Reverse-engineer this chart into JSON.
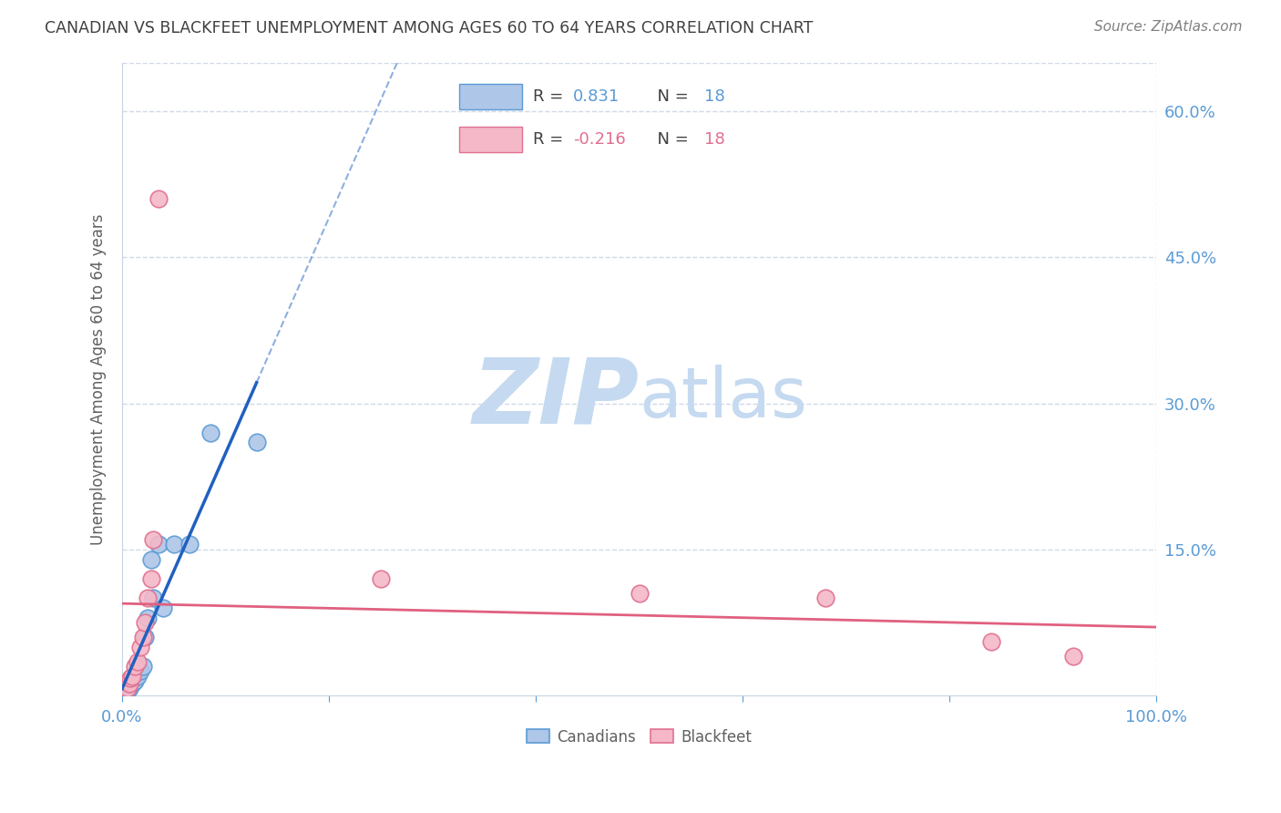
{
  "title": "CANADIAN VS BLACKFEET UNEMPLOYMENT AMONG AGES 60 TO 64 YEARS CORRELATION CHART",
  "source": "Source: ZipAtlas.com",
  "ylabel": "Unemployment Among Ages 60 to 64 years",
  "xlim": [
    0,
    1.0
  ],
  "ylim": [
    0,
    0.65
  ],
  "xticks": [
    0.0,
    0.2,
    0.4,
    0.6,
    0.8,
    1.0
  ],
  "xticklabels": [
    "0.0%",
    "",
    "",
    "",
    "",
    "100.0%"
  ],
  "yticks": [
    0.0,
    0.15,
    0.3,
    0.45,
    0.6
  ],
  "yticklabels": [
    "",
    "15.0%",
    "30.0%",
    "45.0%",
    "60.0%"
  ],
  "canadians_x": [
    0.005,
    0.007,
    0.008,
    0.01,
    0.012,
    0.015,
    0.018,
    0.02,
    0.022,
    0.025,
    0.028,
    0.03,
    0.035,
    0.04,
    0.05,
    0.065,
    0.085,
    0.13
  ],
  "canadians_y": [
    0.005,
    0.008,
    0.01,
    0.012,
    0.015,
    0.02,
    0.025,
    0.03,
    0.06,
    0.08,
    0.14,
    0.1,
    0.155,
    0.09,
    0.155,
    0.155,
    0.27,
    0.26
  ],
  "blackfeet_x": [
    0.005,
    0.007,
    0.008,
    0.01,
    0.012,
    0.015,
    0.018,
    0.02,
    0.022,
    0.025,
    0.028,
    0.03,
    0.035,
    0.25,
    0.5,
    0.68,
    0.84,
    0.92
  ],
  "blackfeet_y": [
    0.008,
    0.012,
    0.018,
    0.02,
    0.03,
    0.035,
    0.05,
    0.06,
    0.075,
    0.1,
    0.12,
    0.16,
    0.51,
    0.12,
    0.105,
    0.1,
    0.055,
    0.04
  ],
  "canadians_color": "#aec6e8",
  "canadians_edge_color": "#5b9bd5",
  "blackfeet_color": "#f4b8c8",
  "blackfeet_edge_color": "#e07090",
  "canadians_line_color": "#2060c0",
  "blackfeet_line_color": "#e06080",
  "r_canadians": "0.831",
  "n_canadians": "18",
  "r_blackfeet": "-0.216",
  "n_blackfeet": "18",
  "legend_canadians": "Canadians",
  "legend_blackfeet": "Blackfeet",
  "watermark_zip": "ZIP",
  "watermark_atlas": "atlas",
  "watermark_color_zip": "#c5daf0",
  "watermark_color_atlas": "#c5daf0",
  "background_color": "#ffffff",
  "title_color": "#404040",
  "axis_label_color": "#606060",
  "tick_color": "#5b9bd5",
  "grid_color": "#d0d8e8",
  "source_color": "#808080",
  "legend_text_color": "#404040",
  "legend_value_color_canadians": "#5b9bd5",
  "legend_value_color_blackfeet": "#e07090"
}
